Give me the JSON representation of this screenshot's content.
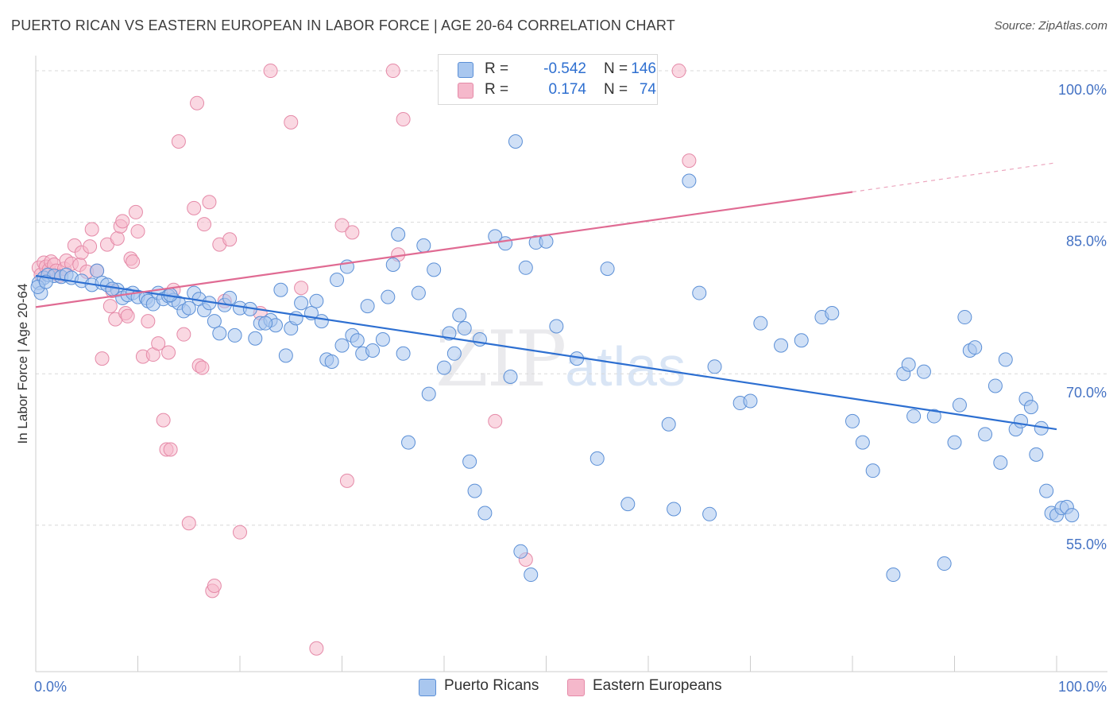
{
  "title": "PUERTO RICAN VS EASTERN EUROPEAN IN LABOR FORCE | AGE 20-64 CORRELATION CHART",
  "source": "Source: ZipAtlas.com",
  "watermark_zip": "ZIP",
  "watermark_atlas": "atlas",
  "legend": {
    "rows": [
      {
        "r_label": "R =",
        "r_value": "-0.542",
        "n_label": "N =",
        "n_value": "146"
      },
      {
        "r_label": "R =",
        "r_value": "0.174",
        "n_label": "N =",
        "n_value": "74"
      }
    ]
  },
  "colors": {
    "blue_fill": "#a9c7ef",
    "blue_stroke": "#5b8fd6",
    "blue_line": "#2d6fd1",
    "pink_fill": "#f5b8cb",
    "pink_stroke": "#e58aa8",
    "pink_line": "#e06b93",
    "grid": "#d9d9d9",
    "tick_text": "#4472c4"
  },
  "chart_data": {
    "type": "scatter",
    "title": "PUERTO RICAN VS EASTERN EUROPEAN IN LABOR FORCE | AGE 20-64 CORRELATION CHART",
    "xlabel": "",
    "ylabel": "In Labor Force | Age 20-64",
    "x_tick_labels": [
      "0.0%",
      "100.0%"
    ],
    "y_tick_labels": [
      "55.0%",
      "70.0%",
      "85.0%",
      "100.0%"
    ],
    "y_ticks": [
      55,
      70,
      85,
      100
    ],
    "xlim": [
      0,
      100
    ],
    "ylim": [
      40.5,
      101.5
    ],
    "grid": true,
    "legend_position": "bottom",
    "series": [
      {
        "name": "Puerto Ricans",
        "r": -0.542,
        "n": 146,
        "trend": {
          "x": [
            0,
            100
          ],
          "y": [
            79.7,
            64.5
          ]
        },
        "points": [
          [
            0.3,
            79
          ],
          [
            0.5,
            78
          ],
          [
            0.8,
            79.5
          ],
          [
            1.2,
            79.8
          ],
          [
            1.8,
            79.7
          ],
          [
            2.5,
            79.6
          ],
          [
            3,
            79.8
          ],
          [
            3.5,
            79.5
          ],
          [
            4.5,
            79.2
          ],
          [
            5.5,
            78.8
          ],
          [
            6,
            80.2
          ],
          [
            6.5,
            79
          ],
          [
            7,
            78.8
          ],
          [
            8,
            78.3
          ],
          [
            8.5,
            77.5
          ],
          [
            9,
            77.8
          ],
          [
            9.5,
            78
          ],
          [
            10,
            77.6
          ],
          [
            10.8,
            77.5
          ],
          [
            11,
            77.2
          ],
          [
            11.5,
            76.9
          ],
          [
            12,
            78
          ],
          [
            12.5,
            77.4
          ],
          [
            13,
            77.7
          ],
          [
            13.5,
            77.3
          ],
          [
            14,
            77
          ],
          [
            14.5,
            76.2
          ],
          [
            15,
            76.5
          ],
          [
            15.5,
            78
          ],
          [
            16,
            77.4
          ],
          [
            16.5,
            76.3
          ],
          [
            17,
            77
          ],
          [
            17.5,
            75.2
          ],
          [
            18,
            74
          ],
          [
            18.5,
            76.8
          ],
          [
            19,
            77.5
          ],
          [
            19.5,
            73.8
          ],
          [
            20,
            76.5
          ],
          [
            21,
            76.4
          ],
          [
            21.5,
            73.5
          ],
          [
            22,
            75
          ],
          [
            23,
            75.3
          ],
          [
            23.5,
            74.8
          ],
          [
            24,
            78.3
          ],
          [
            24.5,
            71.8
          ],
          [
            25,
            74.5
          ],
          [
            25.5,
            75.5
          ],
          [
            26,
            77
          ],
          [
            27,
            76
          ],
          [
            27.5,
            77.2
          ],
          [
            28,
            75.2
          ],
          [
            28.5,
            71.4
          ],
          [
            29,
            71.2
          ],
          [
            29.5,
            79.3
          ],
          [
            30,
            72.8
          ],
          [
            30.5,
            80.6
          ],
          [
            31,
            73.8
          ],
          [
            31.5,
            73.3
          ],
          [
            32,
            72
          ],
          [
            32.5,
            76.7
          ],
          [
            33,
            72.3
          ],
          [
            34,
            73.4
          ],
          [
            34.5,
            77.6
          ],
          [
            35,
            80.8
          ],
          [
            35.5,
            83.8
          ],
          [
            36,
            72
          ],
          [
            36.5,
            63.2
          ],
          [
            37.5,
            78
          ],
          [
            38,
            82.7
          ],
          [
            38.5,
            68
          ],
          [
            39,
            80.3
          ],
          [
            40,
            70.6
          ],
          [
            40.5,
            74
          ],
          [
            41,
            72
          ],
          [
            41.5,
            75.8
          ],
          [
            42,
            74.5
          ],
          [
            42.5,
            61.3
          ],
          [
            43,
            58.4
          ],
          [
            43.5,
            73.4
          ],
          [
            44,
            56.2
          ],
          [
            45,
            83.6
          ],
          [
            46,
            82.9
          ],
          [
            46.5,
            69.7
          ],
          [
            47,
            93
          ],
          [
            47.5,
            52.4
          ],
          [
            48,
            80.5
          ],
          [
            48.5,
            50.1
          ],
          [
            49,
            83
          ],
          [
            50,
            83.1
          ],
          [
            51,
            74.7
          ],
          [
            53,
            71.5
          ],
          [
            55,
            61.6
          ],
          [
            56,
            80.4
          ],
          [
            58,
            57.1
          ],
          [
            60,
            98.6
          ],
          [
            62,
            65
          ],
          [
            62.5,
            56.6
          ],
          [
            64,
            89.1
          ],
          [
            65,
            78
          ],
          [
            66,
            56.1
          ],
          [
            66.5,
            70.7
          ],
          [
            69,
            67.1
          ],
          [
            70,
            67.3
          ],
          [
            71,
            75
          ],
          [
            73,
            72.8
          ],
          [
            75,
            73.3
          ],
          [
            77,
            75.6
          ],
          [
            78,
            76
          ],
          [
            80,
            65.3
          ],
          [
            81,
            63.2
          ],
          [
            82,
            60.4
          ],
          [
            84,
            50.1
          ],
          [
            85,
            70
          ],
          [
            85.5,
            70.9
          ],
          [
            86,
            65.8
          ],
          [
            87,
            70.2
          ],
          [
            88,
            65.8
          ],
          [
            89,
            51.2
          ],
          [
            90,
            63.2
          ],
          [
            90.5,
            66.9
          ],
          [
            91,
            75.6
          ],
          [
            91.5,
            72.3
          ],
          [
            92,
            72.6
          ],
          [
            93,
            64
          ],
          [
            94,
            68.8
          ],
          [
            94.5,
            61.2
          ],
          [
            95,
            71.4
          ],
          [
            96,
            64.5
          ],
          [
            96.5,
            65.3
          ],
          [
            97,
            67.5
          ],
          [
            97.5,
            66.7
          ],
          [
            98,
            62
          ],
          [
            98.5,
            64.6
          ],
          [
            99,
            58.4
          ],
          [
            99.5,
            56.2
          ],
          [
            100,
            56
          ],
          [
            100.5,
            56.7
          ],
          [
            101,
            56.8
          ],
          [
            101.5,
            56
          ],
          [
            0.2,
            78.6
          ],
          [
            1,
            79.1
          ],
          [
            7.5,
            78.4
          ],
          [
            13.2,
            77.8
          ],
          [
            22.5,
            75
          ]
        ]
      },
      {
        "name": "Eastern Europeans",
        "r": 0.174,
        "n": 74,
        "trend": {
          "x": [
            0,
            80
          ],
          "y": [
            76.6,
            88
          ],
          "dashed_to": {
            "x": 100,
            "y": 90.9
          }
        },
        "points": [
          [
            0.3,
            80.5
          ],
          [
            0.5,
            79.8
          ],
          [
            0.8,
            81
          ],
          [
            1,
            80.6
          ],
          [
            1.3,
            80.3
          ],
          [
            1.5,
            81.1
          ],
          [
            1.8,
            80.8
          ],
          [
            2,
            80.2
          ],
          [
            2.3,
            79.7
          ],
          [
            2.8,
            80.4
          ],
          [
            3,
            81.2
          ],
          [
            3.5,
            80.9
          ],
          [
            3.8,
            82.7
          ],
          [
            4.3,
            80.8
          ],
          [
            4.5,
            82
          ],
          [
            5,
            80.1
          ],
          [
            5.3,
            82.6
          ],
          [
            5.5,
            84.3
          ],
          [
            6,
            80.2
          ],
          [
            6.5,
            71.5
          ],
          [
            7,
            82.8
          ],
          [
            7.3,
            76.7
          ],
          [
            7.5,
            78.2
          ],
          [
            7.8,
            75.4
          ],
          [
            8,
            83.4
          ],
          [
            8.3,
            84.6
          ],
          [
            8.5,
            85.1
          ],
          [
            8.8,
            76
          ],
          [
            9,
            75.7
          ],
          [
            9.3,
            81.4
          ],
          [
            9.5,
            81.1
          ],
          [
            9.8,
            86
          ],
          [
            10,
            84.1
          ],
          [
            10.5,
            71.7
          ],
          [
            11,
            75.2
          ],
          [
            11.5,
            71.9
          ],
          [
            12,
            73
          ],
          [
            12.5,
            65.4
          ],
          [
            12.8,
            62.5
          ],
          [
            13,
            72.1
          ],
          [
            13.2,
            62.5
          ],
          [
            13.5,
            78.3
          ],
          [
            14,
            93
          ],
          [
            14.5,
            73.9
          ],
          [
            15,
            55.2
          ],
          [
            15.5,
            86.4
          ],
          [
            15.8,
            96.8
          ],
          [
            16,
            70.8
          ],
          [
            16.3,
            70.6
          ],
          [
            16.5,
            84.8
          ],
          [
            17,
            87
          ],
          [
            17.3,
            48.5
          ],
          [
            17.5,
            49
          ],
          [
            18,
            82.8
          ],
          [
            18.5,
            77.2
          ],
          [
            19,
            83.3
          ],
          [
            20,
            54.3
          ],
          [
            22,
            76
          ],
          [
            23,
            100
          ],
          [
            25,
            94.9
          ],
          [
            26,
            78.5
          ],
          [
            27.5,
            42.8
          ],
          [
            30,
            84.7
          ],
          [
            30.5,
            59.4
          ],
          [
            31,
            84
          ],
          [
            35,
            100
          ],
          [
            35.5,
            81.8
          ],
          [
            36,
            95.2
          ],
          [
            45,
            65.3
          ],
          [
            48,
            51.6
          ],
          [
            50,
            100
          ],
          [
            63,
            100
          ],
          [
            64,
            91.1
          ]
        ]
      }
    ]
  },
  "bottom_legend": {
    "series1": "Puerto Ricans",
    "series2": "Eastern Europeans"
  }
}
